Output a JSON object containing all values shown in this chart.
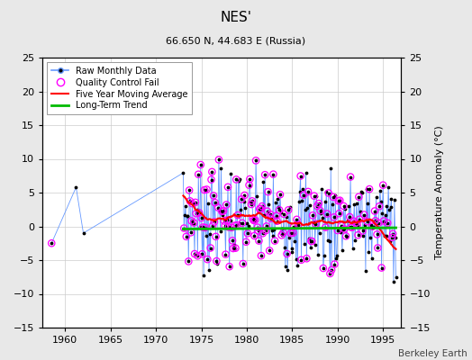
{
  "title": "NES'",
  "subtitle": "66.650 N, 44.683 E (Russia)",
  "ylabel": "Temperature Anomaly (°C)",
  "xlabel_credit": "Berkeley Earth",
  "ylim": [
    -15,
    25
  ],
  "yticks": [
    -15,
    -10,
    -5,
    0,
    5,
    10,
    15,
    20,
    25
  ],
  "xlim": [
    1957.5,
    1997
  ],
  "xticks": [
    1960,
    1965,
    1970,
    1975,
    1980,
    1985,
    1990,
    1995
  ],
  "background_color": "#e8e8e8",
  "plot_background": "#ffffff",
  "grid_color": "#cccccc",
  "raw_line_color": "#6699ff",
  "raw_marker_color": "#000000",
  "qc_fail_color": "#ff00ff",
  "moving_avg_color": "#ff0000",
  "trend_color": "#00bb00",
  "figwidth": 5.24,
  "figheight": 4.0,
  "dpi": 100
}
